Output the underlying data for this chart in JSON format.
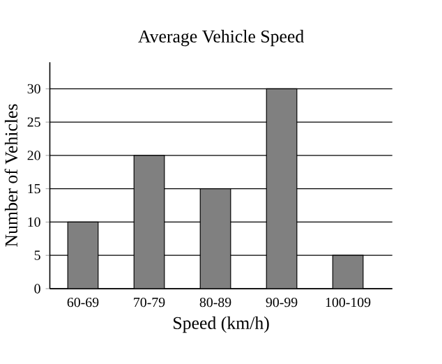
{
  "chart_data": {
    "type": "bar",
    "title": "Average Vehicle Speed",
    "xlabel": "Speed (km/h)",
    "ylabel": "Number of Vehicles",
    "categories": [
      "60-69",
      "70-79",
      "80-89",
      "90-99",
      "100-109"
    ],
    "values": [
      10,
      20,
      15,
      30,
      5
    ],
    "color": "#808080",
    "ylim": [
      0,
      34
    ],
    "yticks": [
      0,
      5,
      10,
      15,
      20,
      25,
      30
    ],
    "grid": "y"
  }
}
